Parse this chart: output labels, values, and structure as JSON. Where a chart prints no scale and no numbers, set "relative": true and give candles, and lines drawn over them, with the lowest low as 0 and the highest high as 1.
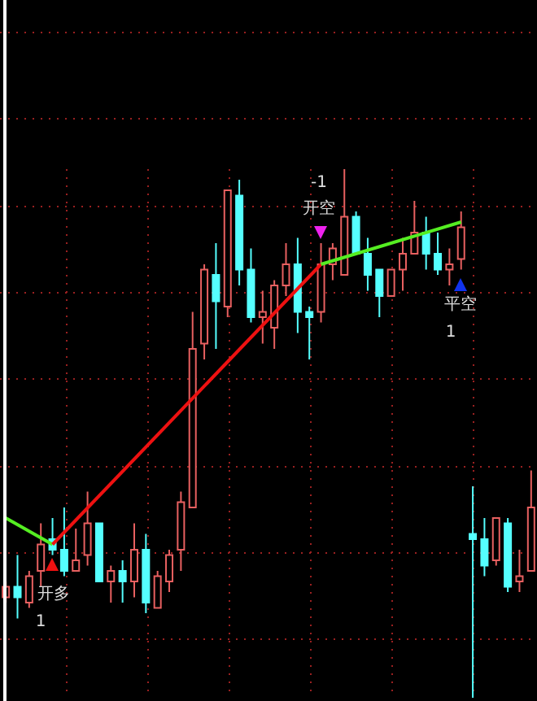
{
  "chart_data": {
    "type": "candlestick",
    "relative": true,
    "grid": true,
    "categories": [
      null,
      null,
      null,
      null,
      null,
      null,
      null,
      null,
      null,
      null,
      null,
      null,
      null,
      null,
      null,
      null,
      null,
      null,
      null,
      null,
      null,
      null,
      null,
      null,
      null,
      null,
      null,
      null,
      null,
      null,
      null,
      null,
      null,
      null,
      null,
      null,
      null,
      null,
      null,
      null,
      null,
      null,
      null,
      null,
      null,
      null
    ],
    "ohlc": [
      [
        0.19,
        0.22,
        0.18,
        0.21
      ],
      [
        0.21,
        0.27,
        0.15,
        0.19
      ],
      [
        0.18,
        0.24,
        0.17,
        0.23
      ],
      [
        0.24,
        0.33,
        0.21,
        0.29
      ],
      [
        0.3,
        0.34,
        0.27,
        0.28
      ],
      [
        0.28,
        0.36,
        0.23,
        0.24
      ],
      [
        0.24,
        0.32,
        0.24,
        0.26
      ],
      [
        0.27,
        0.39,
        0.25,
        0.33
      ],
      [
        0.33,
        0.33,
        0.22,
        0.22
      ],
      [
        0.22,
        0.25,
        0.18,
        0.24
      ],
      [
        0.24,
        0.26,
        0.18,
        0.22
      ],
      [
        0.22,
        0.33,
        0.19,
        0.28
      ],
      [
        0.28,
        0.31,
        0.16,
        0.18
      ],
      [
        0.17,
        0.24,
        0.17,
        0.23
      ],
      [
        0.22,
        0.28,
        0.2,
        0.27
      ],
      [
        0.28,
        0.39,
        0.24,
        0.37
      ],
      [
        0.36,
        0.73,
        0.36,
        0.66
      ],
      [
        0.67,
        0.82,
        0.64,
        0.81
      ],
      [
        0.8,
        0.86,
        0.66,
        0.75
      ],
      [
        0.74,
        0.96,
        0.72,
        0.96
      ],
      [
        0.95,
        0.98,
        0.78,
        0.81
      ],
      [
        0.81,
        0.85,
        0.71,
        0.72
      ],
      [
        0.72,
        0.77,
        0.67,
        0.73
      ],
      [
        0.7,
        0.79,
        0.66,
        0.78
      ],
      [
        0.78,
        0.86,
        0.76,
        0.82
      ],
      [
        0.82,
        0.87,
        0.69,
        0.73
      ],
      [
        0.73,
        0.74,
        0.64,
        0.72
      ],
      [
        0.73,
        0.86,
        0.71,
        0.82
      ],
      [
        0.82,
        0.86,
        0.79,
        0.85
      ],
      [
        0.8,
        1.0,
        0.8,
        0.91
      ],
      [
        0.91,
        0.92,
        0.84,
        0.84
      ],
      [
        0.84,
        0.87,
        0.77,
        0.8
      ],
      [
        0.81,
        0.81,
        0.72,
        0.76
      ],
      [
        0.76,
        0.81,
        0.76,
        0.81
      ],
      [
        0.81,
        0.87,
        0.77,
        0.84
      ],
      [
        0.84,
        0.94,
        0.84,
        0.88
      ],
      [
        0.88,
        0.91,
        0.81,
        0.84
      ],
      [
        0.84,
        0.88,
        0.8,
        0.81
      ],
      [
        0.81,
        0.85,
        0.78,
        0.82
      ],
      [
        0.83,
        0.92,
        0.81,
        0.89
      ],
      [
        0.31,
        0.4,
        0,
        0.3
      ],
      [
        0.3,
        0.34,
        0.23,
        0.25
      ],
      [
        0.26,
        0.34,
        0.25,
        0.34
      ],
      [
        0.33,
        0.34,
        0.2,
        0.21
      ],
      [
        0.22,
        0.28,
        0.2,
        0.23
      ],
      [
        0.24,
        0.43,
        0.24,
        0.36
      ]
    ],
    "colors": [
      "#e86060",
      "#55ffff",
      "#e86060",
      "#e86060",
      "#55ffff",
      "#55ffff",
      "#e86060",
      "#e86060",
      "#55ffff",
      "#e86060",
      "#55ffff",
      "#e86060",
      "#55ffff",
      "#e86060",
      "#e86060",
      "#e86060",
      "#e86060",
      "#e86060",
      "#55ffff",
      "#e86060",
      "#55ffff",
      "#55ffff",
      "#e86060",
      "#e86060",
      "#e86060",
      "#55ffff",
      "#55ffff",
      "#e86060",
      "#e86060",
      "#e86060",
      "#55ffff",
      "#55ffff",
      "#55ffff",
      "#e86060",
      "#e86060",
      "#e86060",
      "#55ffff",
      "#55ffff",
      "#e86060",
      "#e86060",
      "#55ffff",
      "#55ffff",
      "#e86060",
      "#55ffff",
      "#e86060",
      "#e86060"
    ],
    "series": [
      {
        "type": "line",
        "color": "#55ee22",
        "values": [
          0.34,
          null,
          null,
          null,
          0.29,
          null,
          null,
          null,
          null,
          null,
          null,
          null,
          null,
          null,
          null,
          null,
          null,
          null,
          null,
          null,
          null,
          null,
          null,
          null,
          null,
          null,
          null,
          null,
          null,
          null,
          null,
          null,
          null,
          null,
          null,
          null,
          null,
          null,
          null,
          null,
          null,
          null,
          null,
          null,
          null,
          null
        ]
      },
      {
        "type": "line",
        "color": "#ee1111",
        "values": [
          null,
          null,
          null,
          null,
          0.29,
          null,
          null,
          null,
          null,
          null,
          null,
          null,
          null,
          null,
          null,
          null,
          null,
          null,
          null,
          null,
          null,
          null,
          null,
          null,
          null,
          null,
          null,
          0.82,
          null,
          null,
          null,
          null,
          null,
          null,
          null,
          null,
          null,
          null,
          null,
          null,
          null,
          null,
          null,
          null,
          null,
          null
        ]
      },
      {
        "type": "line",
        "color": "#55ee22",
        "values": [
          null,
          null,
          null,
          null,
          null,
          null,
          null,
          null,
          null,
          null,
          null,
          null,
          null,
          null,
          null,
          null,
          null,
          null,
          null,
          null,
          null,
          null,
          null,
          null,
          null,
          null,
          null,
          0.82,
          null,
          null,
          null,
          null,
          null,
          null,
          null,
          null,
          null,
          null,
          null,
          0.9,
          null,
          null,
          null,
          null,
          null,
          null
        ]
      }
    ],
    "annotations": [
      "开多",
      "1",
      "-1",
      "开空",
      "平空",
      "1"
    ]
  }
}
